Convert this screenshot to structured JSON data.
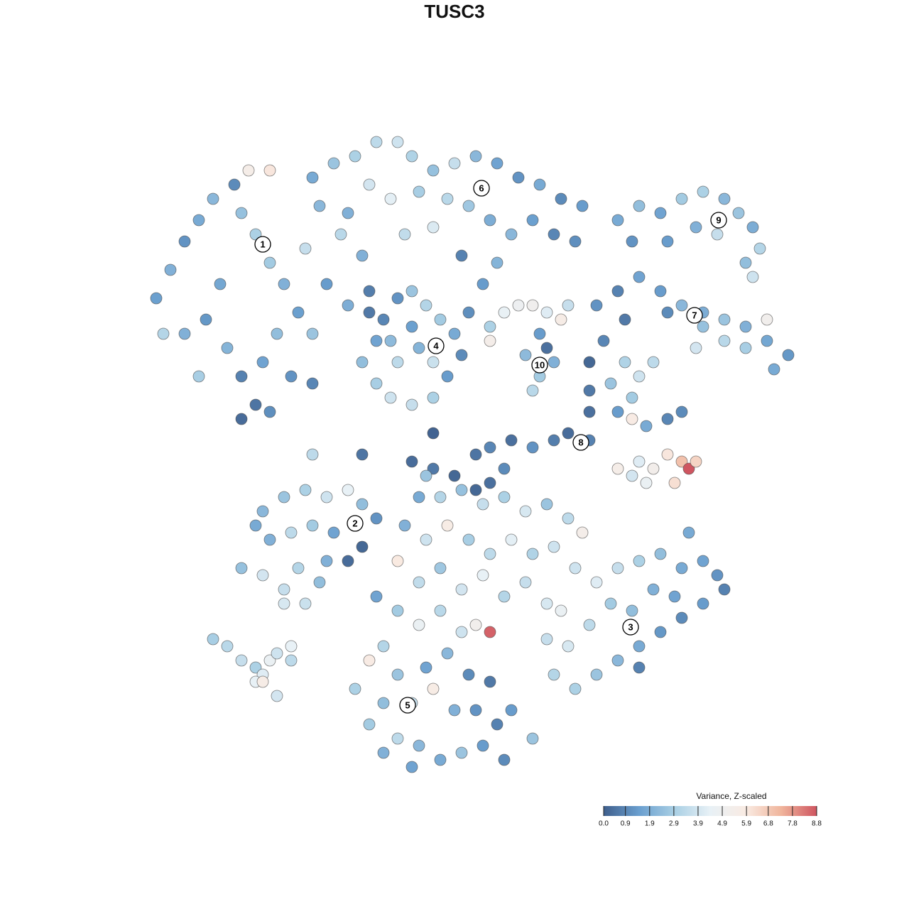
{
  "chart_data": {
    "type": "scatter",
    "title": "TUSC3",
    "xlim": [
      -50,
      50
    ],
    "ylim": [
      -50,
      50
    ],
    "clim": [
      0,
      8.8
    ],
    "colorscale": [
      "#3f5f8c",
      "#6a9fcf",
      "#a9cfe4",
      "#e8f1f6",
      "#f9ebe3",
      "#f0b59c",
      "#cf5560"
    ],
    "legend_title": "Variance, Z-scaled",
    "legend_position": "bottom-right",
    "cticks": [
      {
        "value": 0,
        "label": "0.0"
      },
      0.9,
      1.9,
      2.9,
      3.9,
      4.9,
      5.9,
      6.8,
      7.8,
      8.8
    ],
    "cluster_labels": [
      {
        "label": "1",
        "x": -27,
        "y": 29.6
      },
      {
        "label": "6",
        "x": 3.8,
        "y": 37.5
      },
      {
        "label": "9",
        "x": 37.2,
        "y": 33
      },
      {
        "label": "7",
        "x": 33.8,
        "y": 19.6
      },
      {
        "label": "4",
        "x": -2.6,
        "y": 15.3
      },
      {
        "label": "10",
        "x": 12,
        "y": 12.6
      },
      {
        "label": "8",
        "x": 17.8,
        "y": 1.7
      },
      {
        "label": "2",
        "x": -14,
        "y": -9.7
      },
      {
        "label": "3",
        "x": 24.8,
        "y": -24.3
      },
      {
        "label": "5",
        "x": -6.6,
        "y": -35.3
      }
    ],
    "x": [
      -42,
      -40,
      -38,
      -36,
      -34,
      -31,
      -30,
      -28,
      -26,
      -24,
      -22,
      -20,
      -33,
      -35,
      -32,
      -30,
      -28,
      -27,
      -25,
      -23,
      -30,
      -26,
      -38,
      -41,
      -29,
      -26,
      -19,
      -16,
      -13,
      -21,
      -18,
      -15,
      -12,
      -36,
      -20,
      -20,
      -17,
      -14,
      -11,
      -8,
      -6,
      -3,
      0,
      3,
      6,
      9,
      12,
      15,
      18,
      -12,
      -9,
      -5,
      -1,
      2,
      5,
      8,
      11,
      14,
      -15,
      -7,
      -3,
      1,
      6,
      4,
      17,
      23,
      26,
      29,
      32,
      35,
      38,
      40,
      42,
      43,
      41,
      37,
      34,
      30,
      42,
      25,
      20,
      23,
      26,
      29,
      32,
      35,
      38,
      41,
      44,
      47,
      45,
      41,
      38,
      35,
      30,
      24,
      44,
      34,
      -13,
      -11,
      -10,
      -8,
      -6,
      -4,
      -2,
      0,
      1,
      -1,
      -3,
      -6,
      -9,
      -11,
      -8,
      -5,
      -3,
      -6,
      -9,
      -12,
      2,
      5,
      7,
      9,
      11,
      13,
      15,
      16,
      12,
      10,
      12,
      14,
      11,
      13,
      5,
      -6,
      -3,
      0,
      3,
      5,
      8,
      11,
      14,
      16,
      19,
      5,
      7,
      3,
      19,
      19,
      19,
      21,
      22,
      24,
      26,
      28,
      25,
      23,
      27,
      30,
      32,
      26,
      28,
      30,
      32,
      33,
      34,
      31,
      27,
      25,
      23,
      25,
      -4,
      -13,
      -20,
      -3,
      -27,
      -24,
      -21,
      -18,
      -15,
      -13,
      -11,
      -13,
      -15,
      -17,
      -20,
      -23,
      -26,
      -28,
      -30,
      -27,
      -24,
      -22,
      -19,
      -24,
      -21,
      -18,
      -34,
      -32,
      -30,
      -28,
      -27,
      -26,
      -25,
      -28,
      -27,
      -23,
      -25,
      -23,
      -5,
      -2,
      1,
      4,
      7,
      10,
      13,
      16,
      18,
      -7,
      -4,
      -1,
      2,
      5,
      8,
      11,
      14,
      -8,
      -5,
      -2,
      1,
      4,
      7,
      10,
      13,
      -11,
      -8,
      -5,
      -2,
      1,
      5,
      3,
      -10,
      -12,
      -8,
      -4,
      -1,
      2,
      5,
      -14,
      -10,
      -6,
      -3,
      0,
      3,
      6,
      8,
      -12,
      -8,
      -5,
      -2,
      1,
      4,
      7,
      -6,
      -10,
      11,
      17,
      20,
      23,
      26,
      29,
      32,
      35,
      37,
      38,
      35,
      32,
      29,
      26,
      23,
      20,
      17,
      14,
      16,
      19,
      22,
      25,
      28,
      31,
      13,
      15,
      33,
      26
    ],
    "y": [
      22,
      26,
      30,
      33,
      36,
      38,
      34,
      31,
      27,
      24,
      20,
      17,
      24,
      19,
      15,
      11,
      7,
      13,
      17,
      11,
      5,
      6,
      17,
      17,
      40,
      40,
      35,
      31,
      28,
      29,
      24,
      21,
      23,
      11,
      10,
      39,
      41,
      42,
      44,
      44,
      42,
      40,
      41,
      42,
      41,
      39,
      38,
      36,
      35,
      38,
      36,
      37,
      36,
      35,
      33,
      31,
      33,
      31,
      34,
      31,
      32,
      28,
      27,
      24,
      30,
      33,
      35,
      34,
      36,
      37,
      36,
      34,
      32,
      29,
      27,
      31,
      32,
      30,
      25,
      30,
      21,
      23,
      25,
      23,
      21,
      20,
      19,
      18,
      16,
      14,
      12,
      15,
      16,
      18,
      20,
      19,
      19,
      15,
      13,
      16,
      19,
      22,
      23,
      21,
      19,
      17,
      14,
      11,
      8,
      7,
      8,
      10,
      13,
      15,
      13,
      18,
      16,
      20,
      20,
      18,
      20,
      21,
      21,
      20,
      19,
      21,
      17,
      14,
      11,
      13,
      9,
      15,
      16,
      -1,
      -2,
      -3,
      0,
      1,
      2,
      1,
      2,
      3,
      2,
      -4,
      -2,
      -5,
      6,
      9,
      13,
      16,
      10,
      13,
      11,
      13,
      8,
      6,
      4,
      5,
      6,
      -1,
      -2,
      0,
      -1,
      -2,
      -1,
      -4,
      -4,
      -3,
      -2,
      5,
      -3,
      0,
      0,
      3,
      -8,
      -6,
      -5,
      -6,
      -5,
      -7,
      -9,
      -13,
      -15,
      -11,
      -10,
      -11,
      -12,
      -10,
      -16,
      -17,
      -19,
      -16,
      -18,
      -21,
      -21,
      -15,
      -26,
      -27,
      -29,
      -30,
      -31,
      -29,
      -28,
      -32,
      -32,
      -27,
      -34,
      -29,
      -6,
      -6,
      -5,
      -7,
      -6,
      -8,
      -7,
      -9,
      -11,
      -10,
      -12,
      -10,
      -12,
      -14,
      -12,
      -14,
      -13,
      -15,
      -18,
      -16,
      -19,
      -17,
      -20,
      -18,
      -21,
      -20,
      -22,
      -24,
      -22,
      -25,
      -25,
      -24,
      -27,
      -29,
      -31,
      -30,
      -28,
      -31,
      -32,
      -33,
      -35,
      -35,
      -33,
      -36,
      -36,
      -38,
      -36,
      -38,
      -40,
      -41,
      -43,
      -42,
      -41,
      -43,
      -44,
      -42,
      -40,
      -16,
      -18,
      -16,
      -15,
      -14,
      -16,
      -15,
      -17,
      -19,
      -21,
      -23,
      -25,
      -27,
      -29,
      -31,
      -33,
      -31,
      -27,
      -24,
      -21,
      -22,
      -19,
      -20,
      -26,
      -22,
      -11,
      -30
    ],
    "values": [
      1.5,
      2.0,
      1.2,
      1.8,
      2.2,
      1.0,
      2.5,
      3.0,
      2.8,
      2.0,
      1.5,
      2.6,
      1.7,
      1.3,
      2.1,
      0.8,
      0.5,
      1.6,
      2.4,
      1.2,
      0.3,
      1.1,
      2.0,
      3.2,
      5.5,
      6.0,
      2.2,
      3.3,
      2.0,
      3.6,
      1.4,
      1.9,
      0.7,
      2.9,
      0.9,
      1.8,
      2.6,
      3.0,
      3.4,
      3.8,
      3.1,
      2.5,
      3.6,
      2.2,
      1.6,
      1.2,
      1.8,
      1.0,
      1.4,
      3.9,
      4.3,
      2.9,
      3.3,
      2.7,
      1.9,
      2.2,
      1.5,
      0.9,
      2.0,
      3.5,
      4.1,
      0.8,
      2.1,
      1.4,
      1.1,
      1.8,
      2.4,
      1.6,
      2.8,
      3.0,
      2.2,
      2.6,
      1.9,
      3.2,
      2.4,
      3.6,
      2.0,
      1.4,
      3.8,
      1.2,
      1.2,
      0.8,
      1.6,
      1.4,
      2.2,
      1.9,
      2.6,
      2.0,
      1.7,
      1.3,
      1.8,
      2.9,
      3.3,
      2.5,
      1.0,
      0.6,
      5.2,
      3.9,
      2.4,
      1.6,
      0.9,
      1.2,
      2.6,
      3.2,
      2.8,
      1.8,
      1.0,
      1.4,
      3.0,
      3.6,
      3.8,
      2.9,
      3.4,
      2.1,
      3.7,
      1.5,
      2.3,
      0.6,
      1.1,
      3.0,
      4.5,
      4.8,
      5.1,
      4.2,
      5.6,
      3.6,
      1.4,
      2.3,
      2.8,
      2.0,
      3.3,
      0.4,
      5.4,
      0.3,
      0.6,
      0.2,
      0.5,
      0.9,
      0.4,
      1.2,
      0.7,
      0.3,
      0.8,
      0.4,
      1.0,
      0.2,
      0.4,
      0.6,
      0.2,
      0.9,
      2.6,
      3.1,
      3.8,
      3.4,
      2.8,
      1.4,
      1.8,
      0.9,
      1.0,
      4.2,
      5.3,
      6.0,
      7.0,
      8.8,
      6.5,
      6.2,
      4.6,
      3.9,
      5.5,
      5.8,
      2.6,
      0.5,
      3.4,
      0.1,
      2.2,
      2.6,
      3.0,
      3.8,
      4.4,
      2.4,
      1.2,
      0.2,
      0.3,
      1.6,
      2.8,
      3.4,
      2.0,
      1.8,
      2.5,
      3.9,
      3.6,
      3.2,
      2.4,
      4.0,
      3.7,
      2.0,
      2.9,
      3.3,
      3.6,
      3.0,
      4.2,
      4.6,
      3.8,
      4.4,
      5.6,
      4.4,
      3.9,
      3.4,
      1.8,
      3.2,
      2.5,
      3.6,
      3.0,
      4.0,
      2.6,
      3.4,
      5.4,
      2.0,
      3.8,
      5.7,
      2.9,
      3.4,
      4.3,
      3.1,
      3.8,
      5.9,
      3.5,
      2.7,
      3.9,
      4.4,
      3.2,
      3.6,
      4.0,
      1.6,
      2.8,
      4.6,
      3.3,
      3.8,
      8.6,
      5.2,
      3.2,
      5.8,
      2.6,
      1.6,
      2.2,
      1.0,
      0.6,
      3.0,
      2.4,
      3.6,
      5.7,
      2.0,
      1.2,
      0.8,
      1.4,
      2.8,
      3.4,
      2.2,
      1.8,
      2.6,
      1.4,
      1.0,
      1.6,
      2.0,
      2.6,
      3.8,
      4.2,
      3.6,
      3.0,
      2.4,
      1.8,
      1.6,
      1.2,
      0.8,
      1.4,
      1.0,
      1.3,
      1.8,
      2.2,
      2.6,
      3.0,
      3.2,
      4.0,
      3.4,
      2.8,
      2.4,
      2.0,
      1.6,
      3.6,
      4.6,
      1.8,
      0.8
    ]
  }
}
